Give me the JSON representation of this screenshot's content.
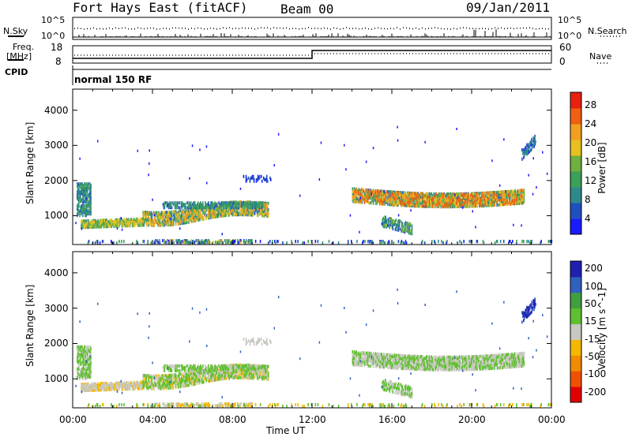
{
  "header": {
    "station": "Fort Hays East (fitACF)",
    "beam": "Beam 00",
    "date": "09/Jan/2011"
  },
  "top_panels": {
    "nsky_label": "N.Sky",
    "nsearch_label": "N.Search",
    "noise_ticks": [
      "10^5",
      "10^0"
    ],
    "freq_label_1": "Freq.",
    "freq_label_2": "[MHz]",
    "freq_ticks": [
      "18",
      "8"
    ],
    "nave_label": "Nave",
    "nave_ticks": [
      "60",
      "0"
    ],
    "cpid_label": "CPID",
    "cpid_value": "normal 150 RF"
  },
  "colors": {
    "power": [
      "#1a1aff",
      "#2050c0",
      "#2e8a8a",
      "#3aa05a",
      "#70b040",
      "#e8c020",
      "#f0a020",
      "#f06010",
      "#e82010"
    ],
    "velocity": [
      "#e00000",
      "#f05000",
      "#f08c00",
      "#f5b800",
      "#c8c8c0",
      "#60c030",
      "#40a040",
      "#3060c0",
      "#2020b0"
    ]
  },
  "chart_data": [
    {
      "type": "heatmap",
      "quantity": "Power",
      "ylabel": "Slant Range [km]",
      "xlim": [
        0,
        24
      ],
      "ylim": [
        180,
        4600
      ],
      "y_ticks": [
        "1000",
        "2000",
        "3000",
        "4000"
      ],
      "colorbar_label": "Power [dB]",
      "colorbar_ticks": [
        "4",
        "8",
        "12",
        "16",
        "20",
        "24",
        "28"
      ]
    },
    {
      "type": "heatmap",
      "quantity": "Velocity",
      "ylabel": "Slant Range [km]",
      "xlabel": "Time UT",
      "xlim": [
        0,
        24
      ],
      "ylim": [
        180,
        4600
      ],
      "x_ticks": [
        "00:00",
        "04:00",
        "08:00",
        "12:00",
        "16:00",
        "20:00",
        "00:00"
      ],
      "y_ticks": [
        "1000",
        "2000",
        "3000",
        "4000"
      ],
      "colorbar_label": "Velocity [m s^-1]",
      "colorbar_ticks": [
        "-200",
        "-100",
        "-50",
        "-15",
        "15",
        "50",
        "100",
        "200"
      ]
    }
  ]
}
